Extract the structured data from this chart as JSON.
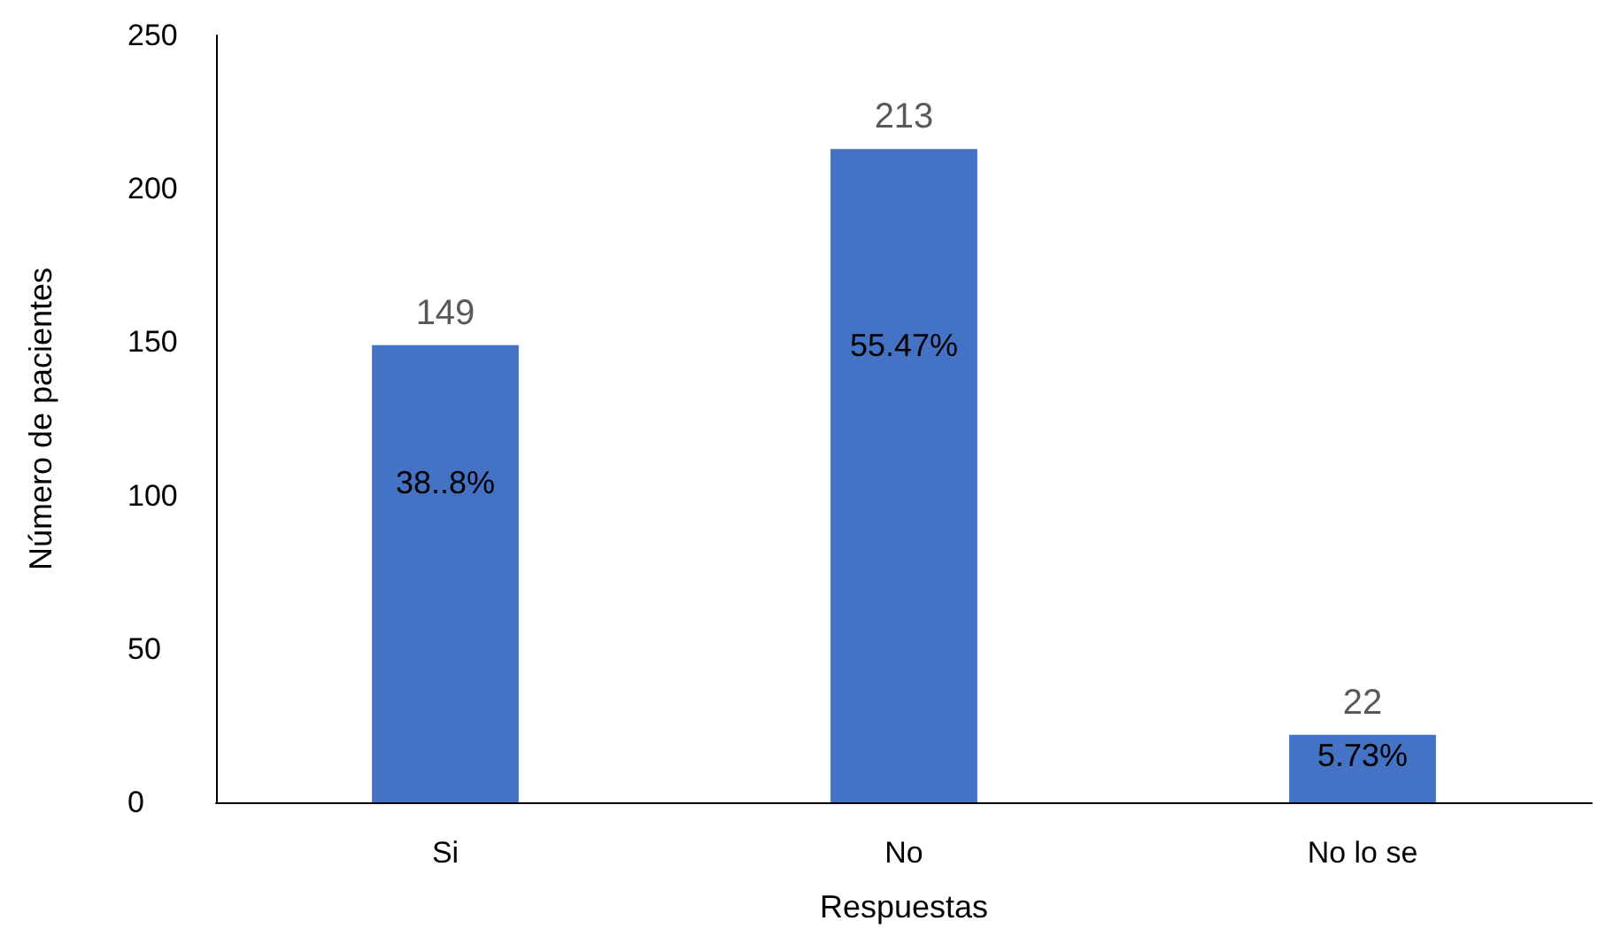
{
  "chart_data": {
    "type": "bar",
    "xlabel": "Respuestas",
    "ylabel": "Número de pacientes",
    "categories": [
      "Si",
      "No",
      "No lo se"
    ],
    "values": [
      149,
      213,
      22
    ],
    "color": "#4472c4",
    "ylim": [
      0,
      250
    ],
    "yticks": [
      0,
      50,
      100,
      150,
      200,
      250
    ],
    "grid": false,
    "data_labels": true,
    "annotations": [
      "38..8%",
      "55.47%",
      "5.73%"
    ]
  }
}
